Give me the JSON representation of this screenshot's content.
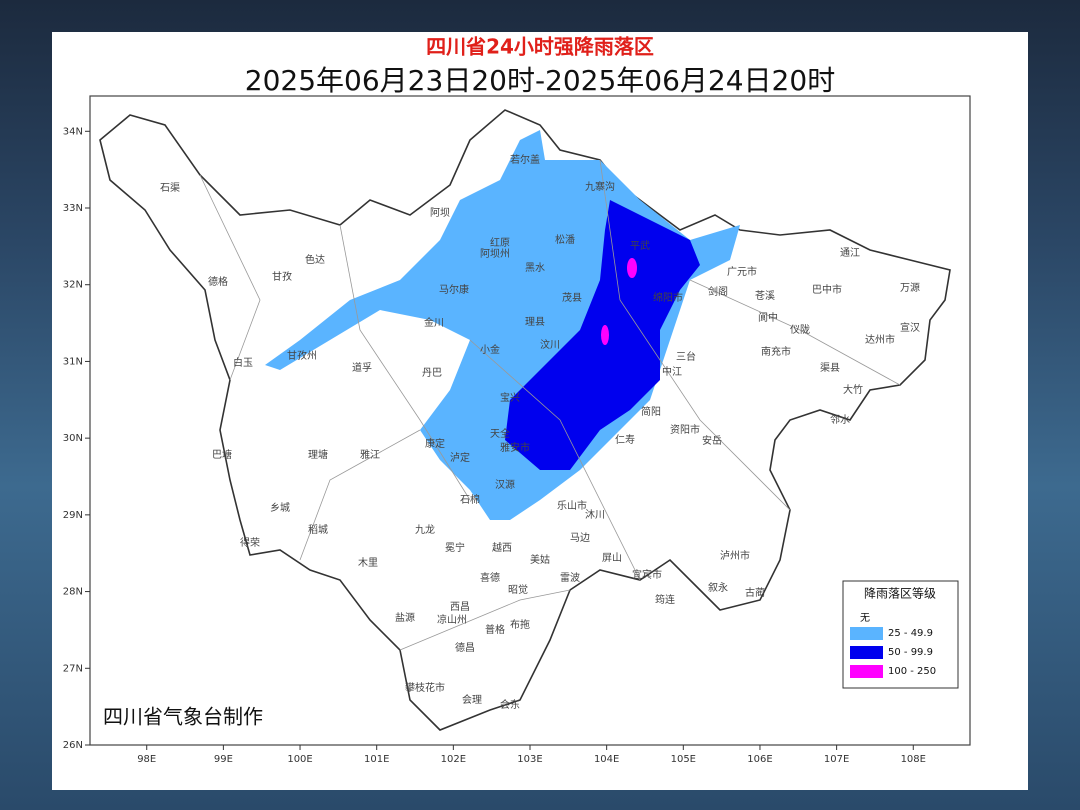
{
  "header": {
    "title": "四川省24小时强降雨落区",
    "subtitle": "2025年06月23日20时-2025年06月24日20时"
  },
  "map": {
    "xlim": [
      97.26,
      108.74
    ],
    "ylim": [
      26,
      34.46
    ],
    "xticks": [
      {
        "value": 98,
        "label": "98E"
      },
      {
        "value": 99,
        "label": "99E"
      },
      {
        "value": 100,
        "label": "100E"
      },
      {
        "value": 101,
        "label": "101E"
      },
      {
        "value": 102,
        "label": "102E"
      },
      {
        "value": 103,
        "label": "103E"
      },
      {
        "value": 104,
        "label": "104E"
      },
      {
        "value": 105,
        "label": "105E"
      },
      {
        "value": 106,
        "label": "106E"
      },
      {
        "value": 107,
        "label": "107E"
      },
      {
        "value": 108,
        "label": "108E"
      }
    ],
    "yticks": [
      {
        "value": 26,
        "label": "26N"
      },
      {
        "value": 27,
        "label": "27N"
      },
      {
        "value": 28,
        "label": "28N"
      },
      {
        "value": 29,
        "label": "29N"
      },
      {
        "value": 30,
        "label": "30N"
      },
      {
        "value": 31,
        "label": "31N"
      },
      {
        "value": 32,
        "label": "32N"
      },
      {
        "value": 33,
        "label": "33N"
      },
      {
        "value": 34,
        "label": "34N"
      }
    ],
    "places": [
      "石渠",
      "德格",
      "白玉",
      "巴塘",
      "乡城",
      "得荣",
      "稻城",
      "理塘",
      "雅江",
      "甘孜",
      "色达",
      "道孚",
      "丹巴",
      "康定",
      "泸定",
      "九龙",
      "木里",
      "盐源",
      "冕宁",
      "西昌",
      "德昌",
      "会理",
      "会东",
      "普格",
      "布拖",
      "昭觉",
      "喜德",
      "越西",
      "美姑",
      "雷波",
      "金川",
      "小金",
      "马尔康",
      "阿坝",
      "红原",
      "松潘",
      "九寨沟",
      "若尔盖",
      "黑水",
      "茂县",
      "理县",
      "汶川",
      "平武",
      "广元市",
      "巴中市",
      "达州市",
      "南充市",
      "绵阳市",
      "雅安市",
      "乐山市",
      "宜宾市",
      "泸州市",
      "资阳市",
      "通江",
      "万源",
      "宣汉",
      "大竹",
      "邻水",
      "剑阁",
      "苍溪",
      "阆中",
      "仪陇",
      "渠县",
      "三台",
      "中江",
      "简阳",
      "安岳",
      "仁寿",
      "天全",
      "宝兴",
      "汉源",
      "石棉",
      "沐川",
      "筠连",
      "古蔺",
      "叙永",
      "屏山",
      "马边",
      "甘孜州",
      "阿坝州",
      "凉山州",
      "攀枝花市"
    ]
  },
  "legend": {
    "title": "降雨落区等级",
    "empty_label": "无",
    "items": [
      {
        "label": "25 - 49.9",
        "color": "#5ab4ff"
      },
      {
        "label": "50 - 99.9",
        "color": "#0000ee"
      },
      {
        "label": "100 - 250",
        "color": "#ff00ff"
      }
    ]
  },
  "credit": "四川省气象台制作"
}
